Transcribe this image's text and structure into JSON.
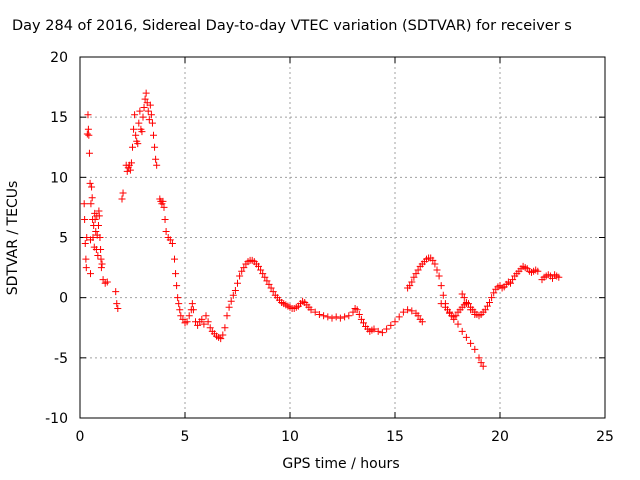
{
  "chart_data": {
    "type": "scatter",
    "title": "Day 284 of 2016, Sidereal Day-to-day VTEC variation (SDTVAR) for receiver s",
    "xlabel": "GPS time / hours",
    "ylabel": "SDTVAR / TECUs",
    "xlim": [
      0,
      25
    ],
    "ylim": [
      -10,
      20
    ],
    "xticks": [
      "0",
      "5",
      "10",
      "15",
      "20",
      "25"
    ],
    "yticks": [
      "-10",
      "-5",
      "0",
      "5",
      "10",
      "15",
      "20"
    ],
    "grid": true,
    "marker": "plus",
    "colors": {
      "series": "#ff0000",
      "grid": "#a0a0a0",
      "axis": "#000000"
    },
    "series": [
      {
        "values": [
          [
            0.2,
            7.8
          ],
          [
            0.22,
            6.5
          ],
          [
            0.25,
            4.5
          ],
          [
            0.28,
            3.2
          ],
          [
            0.3,
            2.5
          ],
          [
            0.32,
            5
          ],
          [
            0.35,
            13.6
          ],
          [
            0.38,
            15.2
          ],
          [
            0.4,
            14
          ],
          [
            0.42,
            13.5
          ],
          [
            0.45,
            12
          ],
          [
            0.48,
            9.5
          ],
          [
            0.5,
            4.8
          ],
          [
            0.5,
            2
          ],
          [
            0.52,
            7.8
          ],
          [
            0.55,
            9.2
          ],
          [
            0.58,
            8.3
          ],
          [
            0.6,
            6.5
          ],
          [
            0.62,
            5
          ],
          [
            0.65,
            6
          ],
          [
            0.68,
            4.2
          ],
          [
            0.7,
            7
          ],
          [
            0.72,
            6.5
          ],
          [
            0.75,
            5.5
          ],
          [
            0.78,
            4
          ],
          [
            0.8,
            6.8
          ],
          [
            0.82,
            5.2
          ],
          [
            0.85,
            3.5
          ],
          [
            0.88,
            6
          ],
          [
            0.9,
            7.2
          ],
          [
            0.92,
            6.8
          ],
          [
            0.95,
            5
          ],
          [
            0.98,
            4
          ],
          [
            1.0,
            3.2
          ],
          [
            1.02,
            2.5
          ],
          [
            1.05,
            2.8
          ],
          [
            1.1,
            1.5
          ],
          [
            1.2,
            1.2
          ],
          [
            1.3,
            1.3
          ],
          [
            1.7,
            0.5
          ],
          [
            1.75,
            -0.5
          ],
          [
            1.8,
            -0.9
          ],
          [
            2.0,
            8.2
          ],
          [
            2.05,
            8.7
          ],
          [
            2.2,
            11
          ],
          [
            2.25,
            10.5
          ],
          [
            2.3,
            10.8
          ],
          [
            2.35,
            11
          ],
          [
            2.4,
            10.6
          ],
          [
            2.45,
            11.2
          ],
          [
            2.5,
            12.5
          ],
          [
            2.55,
            14
          ],
          [
            2.6,
            15.2
          ],
          [
            2.65,
            13.5
          ],
          [
            2.7,
            13
          ],
          [
            2.75,
            12.8
          ],
          [
            2.8,
            14.5
          ],
          [
            2.85,
            15.5
          ],
          [
            2.9,
            14
          ],
          [
            2.95,
            13.8
          ],
          [
            3.0,
            15
          ],
          [
            3.05,
            15.8
          ],
          [
            3.1,
            16.5
          ],
          [
            3.15,
            17
          ],
          [
            3.2,
            16.2
          ],
          [
            3.25,
            15.5
          ],
          [
            3.3,
            14.8
          ],
          [
            3.35,
            16
          ],
          [
            3.4,
            15.2
          ],
          [
            3.45,
            14.5
          ],
          [
            3.5,
            13.5
          ],
          [
            3.55,
            12.5
          ],
          [
            3.6,
            11.5
          ],
          [
            3.65,
            11
          ],
          [
            3.8,
            8.2
          ],
          [
            3.85,
            8
          ],
          [
            3.9,
            7.8
          ],
          [
            3.95,
            8
          ],
          [
            4.0,
            7.5
          ],
          [
            4.05,
            6.5
          ],
          [
            4.1,
            5.5
          ],
          [
            4.2,
            5
          ],
          [
            4.3,
            4.8
          ],
          [
            4.4,
            4.5
          ],
          [
            4.5,
            3.2
          ],
          [
            4.55,
            2
          ],
          [
            4.6,
            1
          ],
          [
            4.65,
            0
          ],
          [
            4.7,
            -0.5
          ],
          [
            4.75,
            -1
          ],
          [
            4.8,
            -1.5
          ],
          [
            4.9,
            -1.8
          ],
          [
            5.0,
            -2.1
          ],
          [
            5.1,
            -2
          ],
          [
            5.2,
            -1.5
          ],
          [
            5.3,
            -1
          ],
          [
            5.35,
            -0.5
          ],
          [
            5.4,
            -1
          ],
          [
            5.5,
            -2
          ],
          [
            5.6,
            -2.3
          ],
          [
            5.7,
            -2
          ],
          [
            5.8,
            -1.8
          ],
          [
            5.9,
            -2.2
          ],
          [
            6.0,
            -1.5
          ],
          [
            6.1,
            -2
          ],
          [
            6.2,
            -2.5
          ],
          [
            6.3,
            -2.8
          ],
          [
            6.4,
            -3
          ],
          [
            6.5,
            -3.2
          ],
          [
            6.6,
            -3.3
          ],
          [
            6.7,
            -3.4
          ],
          [
            6.8,
            -3.1
          ],
          [
            6.9,
            -2.5
          ],
          [
            7.0,
            -1.5
          ],
          [
            7.1,
            -0.8
          ],
          [
            7.2,
            -0.3
          ],
          [
            7.3,
            0.2
          ],
          [
            7.4,
            0.6
          ],
          [
            7.5,
            1.2
          ],
          [
            7.6,
            1.8
          ],
          [
            7.7,
            2.2
          ],
          [
            7.8,
            2.5
          ],
          [
            7.9,
            2.8
          ],
          [
            8.0,
            3
          ],
          [
            8.1,
            3.1
          ],
          [
            8.2,
            3.1
          ],
          [
            8.3,
            3
          ],
          [
            8.4,
            2.8
          ],
          [
            8.5,
            2.6
          ],
          [
            8.6,
            2.3
          ],
          [
            8.7,
            2
          ],
          [
            8.8,
            1.7
          ],
          [
            8.9,
            1.4
          ],
          [
            9.0,
            1.1
          ],
          [
            9.1,
            0.8
          ],
          [
            9.2,
            0.5
          ],
          [
            9.3,
            0.2
          ],
          [
            9.4,
            0
          ],
          [
            9.5,
            -0.2
          ],
          [
            9.6,
            -0.4
          ],
          [
            9.7,
            -0.5
          ],
          [
            9.8,
            -0.6
          ],
          [
            9.9,
            -0.7
          ],
          [
            10.0,
            -0.8
          ],
          [
            10.1,
            -0.9
          ],
          [
            10.2,
            -0.9
          ],
          [
            10.3,
            -0.8
          ],
          [
            10.4,
            -0.7
          ],
          [
            10.5,
            -0.5
          ],
          [
            10.6,
            -0.3
          ],
          [
            10.7,
            -0.4
          ],
          [
            10.8,
            -0.6
          ],
          [
            10.9,
            -0.8
          ],
          [
            11.0,
            -1
          ],
          [
            11.2,
            -1.2
          ],
          [
            11.4,
            -1.4
          ],
          [
            11.6,
            -1.5
          ],
          [
            11.8,
            -1.6
          ],
          [
            12.0,
            -1.7
          ],
          [
            12.2,
            -1.6
          ],
          [
            12.4,
            -1.7
          ],
          [
            12.6,
            -1.6
          ],
          [
            12.8,
            -1.5
          ],
          [
            13.0,
            -1.2
          ],
          [
            13.1,
            -0.9
          ],
          [
            13.2,
            -1
          ],
          [
            13.3,
            -1.4
          ],
          [
            13.4,
            -1.8
          ],
          [
            13.5,
            -2.1
          ],
          [
            13.6,
            -2.4
          ],
          [
            13.7,
            -2.6
          ],
          [
            13.8,
            -2.8
          ],
          [
            13.9,
            -2.7
          ],
          [
            14.0,
            -2.6
          ],
          [
            14.2,
            -2.8
          ],
          [
            14.4,
            -2.9
          ],
          [
            14.6,
            -2.6
          ],
          [
            14.8,
            -2.3
          ],
          [
            15.0,
            -2
          ],
          [
            15.2,
            -1.6
          ],
          [
            15.4,
            -1.2
          ],
          [
            15.6,
            -1
          ],
          [
            15.8,
            -1.1
          ],
          [
            16.0,
            -1.3
          ],
          [
            16.1,
            -1.5
          ],
          [
            16.2,
            -1.8
          ],
          [
            16.3,
            -2
          ],
          [
            15.6,
            0.8
          ],
          [
            15.7,
            1
          ],
          [
            15.8,
            1.3
          ],
          [
            15.9,
            1.7
          ],
          [
            16.0,
            2
          ],
          [
            16.1,
            2.3
          ],
          [
            16.2,
            2.6
          ],
          [
            16.3,
            2.8
          ],
          [
            16.4,
            3
          ],
          [
            16.5,
            3.2
          ],
          [
            16.6,
            3.3
          ],
          [
            16.7,
            3.3
          ],
          [
            16.8,
            3.1
          ],
          [
            16.9,
            2.8
          ],
          [
            17.0,
            2.3
          ],
          [
            17.1,
            1.8
          ],
          [
            17.2,
            1
          ],
          [
            17.3,
            0.2
          ],
          [
            17.4,
            -0.5
          ],
          [
            17.5,
            -1
          ],
          [
            17.6,
            -1.3
          ],
          [
            17.7,
            -1.5
          ],
          [
            17.8,
            -1.8
          ],
          [
            17.9,
            -1.5
          ],
          [
            18.0,
            -1.2
          ],
          [
            18.1,
            -1
          ],
          [
            18.2,
            -0.8
          ],
          [
            18.3,
            -0.6
          ],
          [
            18.4,
            -0.4
          ],
          [
            18.5,
            -0.5
          ],
          [
            18.6,
            -0.8
          ],
          [
            18.7,
            -1
          ],
          [
            18.8,
            -1.2
          ],
          [
            18.9,
            -1.4
          ],
          [
            19.0,
            -1.5
          ],
          [
            19.1,
            -1.4
          ],
          [
            19.2,
            -1.2
          ],
          [
            19.3,
            -1
          ],
          [
            19.4,
            -0.7
          ],
          [
            19.5,
            -0.4
          ],
          [
            19.6,
            0
          ],
          [
            19.7,
            0.4
          ],
          [
            19.8,
            0.7
          ],
          [
            19.9,
            0.9
          ],
          [
            20.0,
            1
          ],
          [
            20.1,
            0.8
          ],
          [
            20.2,
            0.9
          ],
          [
            20.3,
            1.1
          ],
          [
            20.4,
            1.3
          ],
          [
            20.5,
            1.2
          ],
          [
            20.6,
            1.5
          ],
          [
            20.7,
            1.8
          ],
          [
            20.8,
            2
          ],
          [
            20.9,
            2.2
          ],
          [
            21.0,
            2.4
          ],
          [
            21.1,
            2.6
          ],
          [
            21.2,
            2.5
          ],
          [
            21.3,
            2.4
          ],
          [
            21.4,
            2.2
          ],
          [
            21.5,
            2.1
          ],
          [
            21.6,
            2.2
          ],
          [
            21.7,
            2.3
          ],
          [
            21.8,
            2.2
          ],
          [
            22.0,
            1.5
          ],
          [
            22.1,
            1.7
          ],
          [
            22.2,
            1.8
          ],
          [
            22.3,
            1.9
          ],
          [
            22.4,
            1.8
          ],
          [
            22.5,
            1.6
          ],
          [
            22.6,
            1.9
          ],
          [
            22.7,
            1.8
          ],
          [
            22.8,
            1.7
          ],
          [
            17.2,
            -0.5
          ],
          [
            17.4,
            -0.8
          ],
          [
            17.6,
            -1.2
          ],
          [
            17.8,
            -1.6
          ],
          [
            18.0,
            -2.2
          ],
          [
            18.2,
            -2.8
          ],
          [
            18.4,
            -3.3
          ],
          [
            18.6,
            -3.8
          ],
          [
            18.8,
            -4.3
          ],
          [
            19.0,
            -5
          ],
          [
            19.1,
            -5.4
          ],
          [
            19.2,
            -5.7
          ],
          [
            18.2,
            0.3
          ],
          [
            18.3,
            0
          ],
          [
            18.4,
            -0.5
          ],
          [
            18.6,
            -1
          ],
          [
            18.8,
            -1.4
          ]
        ]
      }
    ]
  }
}
